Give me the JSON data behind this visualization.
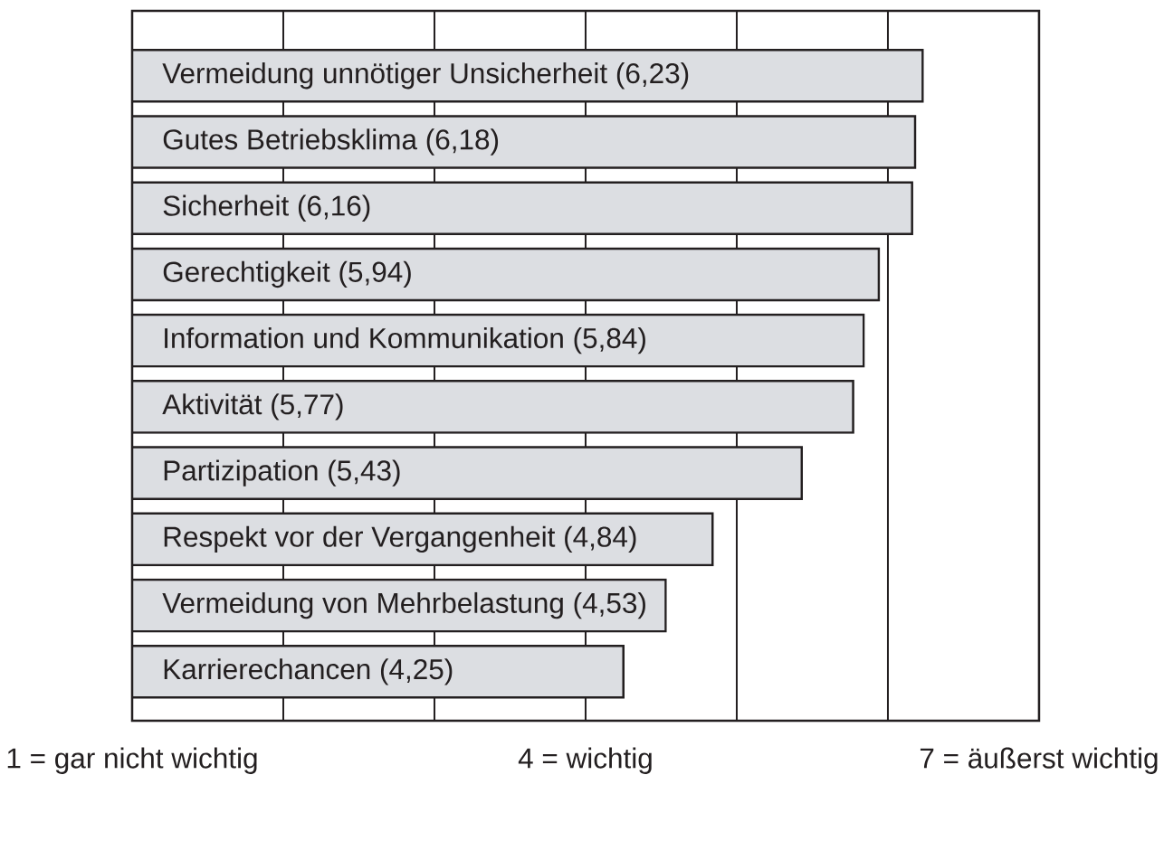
{
  "chart_data": {
    "type": "bar",
    "orientation": "horizontal",
    "categories": [
      "Vermeidung unnötiger Unsicherheit (6,23)",
      "Gutes Betriebsklima (6,18)",
      "Sicherheit (6,16)",
      "Gerechtigkeit (5,94)",
      "Information und Kommunikation (5,84)",
      "Aktivität (5,77)",
      "Partizipation (5,43)",
      "Respekt vor der Vergangenheit (4,84)",
      "Vermeidung von Mehrbelastung (4,53)",
      "Karrierechancen (4,25)"
    ],
    "values": [
      6.23,
      6.18,
      6.16,
      5.94,
      5.84,
      5.77,
      5.43,
      4.84,
      4.53,
      4.25
    ],
    "color": "#dcdee2",
    "xlim": [
      1,
      7
    ],
    "xticks": [
      {
        "value": 1,
        "label": "1 = gar nicht wichtig"
      },
      {
        "value": 2,
        "label": null
      },
      {
        "value": 3,
        "label": null
      },
      {
        "value": 4,
        "label": "4 = wichtig"
      },
      {
        "value": 5,
        "label": null
      },
      {
        "value": 6,
        "label": null
      },
      {
        "value": 7,
        "label": "7 = äußerst wichtig"
      }
    ],
    "grid": "x"
  }
}
